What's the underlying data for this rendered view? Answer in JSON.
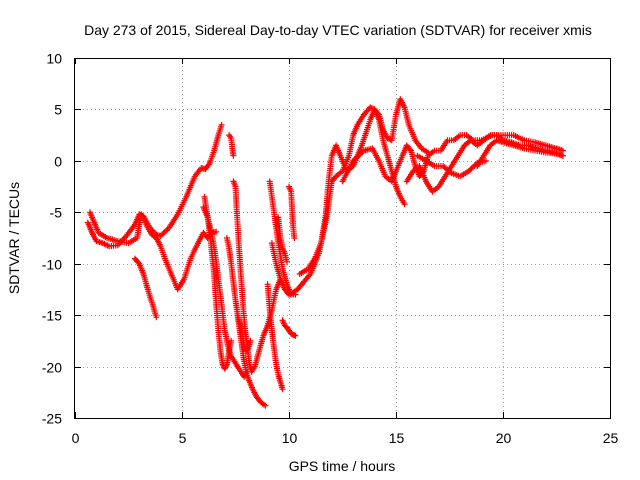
{
  "chart_data": {
    "type": "scatter",
    "title": "Day 273 of 2015, Sidereal Day-to-day VTEC variation (SDTVAR) for receiver xmis",
    "xlabel": "GPS time / hours",
    "ylabel": "SDTVAR / TECUs",
    "xlim": [
      0,
      25
    ],
    "ylim": [
      -25,
      10
    ],
    "xticks": [
      "0",
      "5",
      "10",
      "15",
      "20",
      "25"
    ],
    "yticks": [
      "-25",
      "-20",
      "-15",
      "-10",
      "-5",
      "0",
      "5",
      "10"
    ],
    "grid": true,
    "marker": "+",
    "color": "#ff0000",
    "series": [
      {
        "x": [
          0.6,
          0.8,
          1.0,
          1.3,
          1.6,
          2.0,
          2.4,
          2.8,
          3.0,
          3.2,
          3.5,
          3.8,
          4.0,
          4.4,
          4.8,
          5.2,
          5.6,
          5.9,
          6.1,
          6.3,
          6.5,
          6.7,
          6.85
        ],
        "y": [
          -6.0,
          -7.0,
          -7.8,
          -8.0,
          -8.3,
          -8.2,
          -7.3,
          -6.2,
          -5.2,
          -5.4,
          -6.5,
          -7.2,
          -7.3,
          -6.5,
          -5.2,
          -3.5,
          -1.5,
          -0.7,
          -0.8,
          -0.2,
          1.0,
          2.5,
          3.5
        ]
      },
      {
        "x": [
          0.7,
          0.9,
          1.1,
          1.5,
          2.0,
          2.5,
          2.9,
          3.0,
          3.1,
          3.2,
          3.4,
          3.6,
          3.8,
          4.0,
          4.2,
          4.5,
          4.8,
          5.1,
          5.4,
          5.7,
          6.0,
          6.2,
          6.4,
          6.6
        ],
        "y": [
          -5.0,
          -6.0,
          -7.0,
          -7.5,
          -7.8,
          -8.0,
          -7.5,
          -6.2,
          -5.2,
          -5.5,
          -6.5,
          -7.2,
          -7.5,
          -8.3,
          -9.5,
          -11.0,
          -12.5,
          -11.5,
          -9.5,
          -8.2,
          -7.0,
          -7.5,
          -7.0,
          -6.9
        ]
      },
      {
        "x": [
          2.8,
          3.0,
          3.2,
          3.4,
          3.6,
          3.8
        ],
        "y": [
          -9.5,
          -10.0,
          -11.0,
          -12.5,
          -13.8,
          -15.2
        ]
      },
      {
        "x": [
          6.05,
          6.2,
          6.35,
          6.5,
          6.6,
          6.7,
          6.8,
          6.9,
          7.0,
          7.1,
          7.2,
          7.3
        ],
        "y": [
          -3.5,
          -5.5,
          -8.0,
          -11.0,
          -14.0,
          -16.5,
          -18.5,
          -19.8,
          -20.2,
          -19.8,
          -18.5,
          -17.5
        ]
      },
      {
        "x": [
          6.0,
          6.2,
          6.4,
          6.55,
          6.7,
          6.85,
          7.0,
          7.15,
          7.3,
          7.45,
          7.6,
          7.75,
          7.9,
          8.05
        ],
        "y": [
          -4.5,
          -5.5,
          -7.2,
          -9.0,
          -11.5,
          -14.0,
          -16.5,
          -18.0,
          -19.0,
          -19.5,
          -20.0,
          -20.5,
          -21.0,
          -20.5
        ]
      },
      {
        "x": [
          7.1,
          7.2,
          7.3,
          7.4,
          7.5,
          7.6,
          7.7,
          7.8,
          7.9,
          8.0,
          8.1,
          8.3,
          8.5,
          8.7,
          8.9
        ],
        "y": [
          -7.5,
          -8.5,
          -10.0,
          -11.8,
          -13.5,
          -15.0,
          -16.5,
          -18.0,
          -19.5,
          -20.5,
          -21.2,
          -22.2,
          -23.0,
          -23.5,
          -23.8
        ]
      },
      {
        "x": [
          7.2,
          7.3,
          7.35,
          7.4
        ],
        "y": [
          2.5,
          2.2,
          1.2,
          0.5
        ]
      },
      {
        "x": [
          7.4,
          7.5,
          7.55,
          7.65,
          7.75,
          7.85,
          7.95,
          8.05,
          8.15,
          8.25,
          8.4,
          8.6,
          8.8,
          9.0,
          9.2,
          9.4,
          9.6
        ],
        "y": [
          -2.0,
          -2.5,
          -4.5,
          -8.0,
          -11.0,
          -14.0,
          -16.5,
          -18.0,
          -19.8,
          -20.5,
          -20.0,
          -18.5,
          -17.0,
          -16.0,
          -14.5,
          -12.5,
          -11.5
        ]
      },
      {
        "x": [
          7.6,
          7.7,
          7.8,
          7.9,
          8.0,
          8.1,
          8.2
        ],
        "y": [
          -15.0,
          -15.8,
          -16.5,
          -18.0,
          -18.5,
          -18.2,
          -17.5
        ]
      },
      {
        "x": [
          9.0,
          9.1,
          9.2,
          9.3,
          9.4,
          9.5,
          9.6,
          9.7
        ],
        "y": [
          -12.0,
          -14.5,
          -16.5,
          -18.2,
          -19.8,
          -20.8,
          -21.5,
          -22.2
        ]
      },
      {
        "x": [
          9.1,
          9.3,
          9.5,
          9.7,
          9.9,
          10.1,
          10.3
        ],
        "y": [
          -2.0,
          -5.0,
          -8.0,
          -10.5,
          -12.0,
          -13.0,
          -13.0
        ]
      },
      {
        "x": [
          9.5,
          9.6,
          9.7,
          9.8,
          9.9
        ],
        "y": [
          -5.5,
          -7.5,
          -8.5,
          -9.0,
          -9.8
        ]
      },
      {
        "x": [
          10.0,
          10.1,
          10.15,
          10.2,
          10.25
        ],
        "y": [
          -2.5,
          -3.0,
          -5.0,
          -6.5,
          -7.5
        ]
      },
      {
        "x": [
          9.7,
          9.8,
          9.9,
          10.0,
          10.1,
          10.2,
          10.3
        ],
        "y": [
          -15.5,
          -16.0,
          -16.2,
          -16.5,
          -16.8,
          -16.9,
          -17.0
        ]
      },
      {
        "x": [
          9.2,
          9.4,
          9.6,
          9.8,
          10.0,
          10.2,
          10.4,
          10.6
        ],
        "y": [
          -8.0,
          -10.0,
          -11.5,
          -12.5,
          -13.0,
          -12.8,
          -12.5,
          -12.0
        ]
      },
      {
        "x": [
          10.5,
          10.9,
          11.2,
          11.5,
          11.7,
          11.85,
          12.0,
          12.2,
          12.4,
          12.7,
          13.0,
          13.4,
          13.8,
          14.0,
          14.2,
          14.4,
          14.6,
          14.8,
          15.0,
          15.2,
          15.4,
          15.6,
          15.9,
          16.2,
          16.5
        ],
        "y": [
          -11.0,
          -10.5,
          -9.5,
          -8.0,
          -5.5,
          -2.0,
          0.5,
          1.5,
          0.5,
          -1.0,
          -0.5,
          1.5,
          4.0,
          5.0,
          4.5,
          3.0,
          2.2,
          2.0,
          4.5,
          6.0,
          5.2,
          3.5,
          2.0,
          1.2,
          0.8
        ]
      },
      {
        "x": [
          10.6,
          11.0,
          11.4,
          11.8,
          12.0,
          12.2,
          12.5,
          12.8,
          13.0,
          13.2,
          13.5,
          13.8,
          14.0,
          14.2,
          14.4,
          14.6,
          14.8,
          15.0,
          15.2,
          15.4
        ],
        "y": [
          -12.0,
          -11.0,
          -9.0,
          -5.0,
          -2.0,
          -1.5,
          -1.0,
          0.5,
          2.5,
          3.5,
          4.5,
          5.2,
          5.0,
          4.0,
          2.0,
          0.5,
          -1.0,
          -2.5,
          -3.5,
          -4.2
        ]
      },
      {
        "x": [
          12.5,
          13.0,
          13.5,
          13.9,
          14.2,
          14.5,
          14.8,
          15.0,
          15.3,
          15.5,
          15.7,
          15.9,
          16.1,
          16.3,
          16.5,
          16.8,
          17.1,
          17.4,
          17.7,
          18.0,
          18.3,
          18.6,
          19.0,
          19.5,
          20.0,
          20.5,
          21.0,
          21.5,
          22.0,
          22.5,
          22.8
        ],
        "y": [
          -2.0,
          0.0,
          1.0,
          1.2,
          0.0,
          -1.5,
          -2.0,
          -1.0,
          0.5,
          1.5,
          1.0,
          -0.5,
          -1.5,
          -1.0,
          0.5,
          1.0,
          1.0,
          2.0,
          2.0,
          2.5,
          2.5,
          2.0,
          2.0,
          2.5,
          2.5,
          2.5,
          2.0,
          1.8,
          1.5,
          1.2,
          1.0
        ]
      },
      {
        "x": [
          15.5,
          15.8,
          16.1,
          16.4,
          16.7,
          17.0,
          17.3,
          17.6,
          17.9,
          18.2,
          18.5,
          18.8,
          19.1,
          19.4,
          19.7,
          20.0,
          20.4,
          20.8,
          21.2,
          21.6,
          22.0,
          22.4,
          22.8
        ],
        "y": [
          -2.0,
          -1.0,
          -0.5,
          -2.0,
          -3.0,
          -2.5,
          -1.5,
          -0.5,
          0.5,
          1.5,
          2.0,
          1.5,
          2.0,
          2.5,
          2.5,
          2.0,
          1.8,
          1.5,
          1.5,
          1.2,
          1.0,
          0.8,
          0.5
        ]
      },
      {
        "x": [
          16.0,
          16.4,
          16.8,
          17.2,
          17.6,
          18.0,
          18.4,
          18.8,
          19.2
        ],
        "y": [
          0.5,
          0.0,
          -0.5,
          -0.5,
          -1.2,
          -1.5,
          -1.0,
          -0.2,
          0.0
        ]
      },
      {
        "x": [
          18.8,
          19.1,
          19.4,
          19.7,
          20.0,
          20.5,
          21.0,
          21.5,
          22.0,
          22.5,
          22.8
        ],
        "y": [
          -0.5,
          0.5,
          1.5,
          2.0,
          1.8,
          1.5,
          1.2,
          1.0,
          0.8,
          0.7,
          0.5
        ]
      }
    ]
  }
}
